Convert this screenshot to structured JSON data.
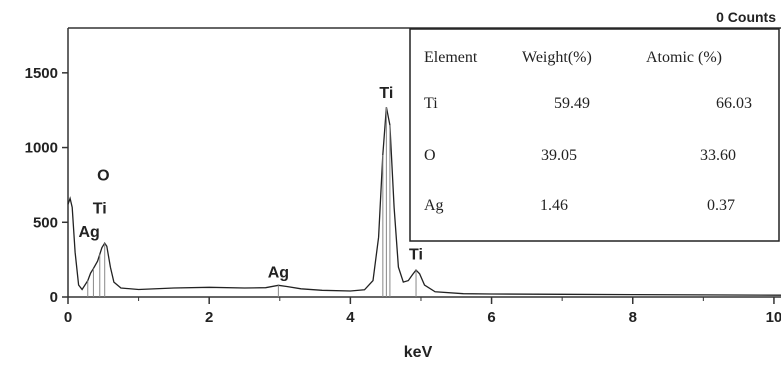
{
  "chart_data": {
    "type": "line",
    "xlabel": "keV",
    "ylabel": "",
    "counts_label": "0  Counts",
    "xlim": [
      0,
      10.1
    ],
    "ylim": [
      0,
      1800
    ],
    "x_ticks": [
      0,
      2,
      4,
      6,
      8,
      10
    ],
    "y_ticks": [
      0,
      500,
      1000,
      1500
    ],
    "spectrum": {
      "name": "",
      "points": [
        [
          0.0,
          620
        ],
        [
          0.03,
          660
        ],
        [
          0.06,
          600
        ],
        [
          0.1,
          300
        ],
        [
          0.15,
          80
        ],
        [
          0.2,
          50
        ],
        [
          0.28,
          110
        ],
        [
          0.32,
          160
        ],
        [
          0.36,
          190
        ],
        [
          0.42,
          240
        ],
        [
          0.48,
          330
        ],
        [
          0.52,
          360
        ],
        [
          0.55,
          340
        ],
        [
          0.6,
          200
        ],
        [
          0.65,
          100
        ],
        [
          0.75,
          60
        ],
        [
          1.0,
          50
        ],
        [
          1.5,
          60
        ],
        [
          2.0,
          65
        ],
        [
          2.5,
          60
        ],
        [
          2.8,
          62
        ],
        [
          2.98,
          78
        ],
        [
          3.1,
          70
        ],
        [
          3.3,
          55
        ],
        [
          3.6,
          45
        ],
        [
          4.0,
          40
        ],
        [
          4.2,
          48
        ],
        [
          4.32,
          110
        ],
        [
          4.4,
          400
        ],
        [
          4.46,
          950
        ],
        [
          4.51,
          1270
        ],
        [
          4.56,
          1150
        ],
        [
          4.62,
          600
        ],
        [
          4.68,
          200
        ],
        [
          4.75,
          100
        ],
        [
          4.82,
          110
        ],
        [
          4.88,
          150
        ],
        [
          4.93,
          180
        ],
        [
          4.98,
          155
        ],
        [
          5.05,
          80
        ],
        [
          5.2,
          35
        ],
        [
          5.6,
          22
        ],
        [
          6.0,
          20
        ],
        [
          7.0,
          18
        ],
        [
          8.0,
          16
        ],
        [
          9.0,
          14
        ],
        [
          10.1,
          12
        ]
      ]
    },
    "peak_labels": [
      {
        "text": "Ti",
        "x": 4.51,
        "y": 1330
      },
      {
        "text": "Ti",
        "x": 4.93,
        "y": 250
      },
      {
        "text": "Ag",
        "x": 2.98,
        "y": 130
      },
      {
        "text": "Ag",
        "x": 0.3,
        "y": 400
      },
      {
        "text": "Ti",
        "x": 0.45,
        "y": 560
      },
      {
        "text": "O",
        "x": 0.5,
        "y": 780
      }
    ],
    "table": {
      "headers": [
        "Element",
        "Weight(%)",
        "Atomic (%)"
      ],
      "rows": [
        {
          "element": "Ti",
          "weight": "59.49",
          "atomic": "66.03"
        },
        {
          "element": "O",
          "weight": "39.05",
          "atomic": "33.60"
        },
        {
          "element": "Ag",
          "weight": "1.46",
          "atomic": "0.37"
        }
      ]
    }
  }
}
